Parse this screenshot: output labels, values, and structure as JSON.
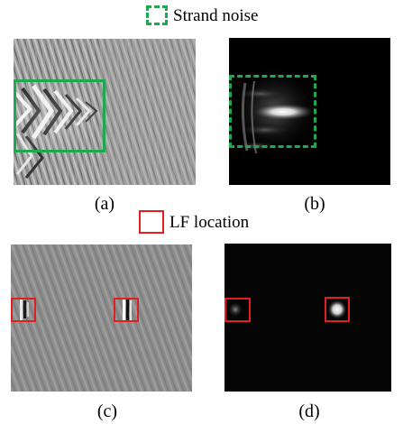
{
  "legend": {
    "strand_noise": "Strand noise",
    "lf_location": "LF location"
  },
  "panels": [
    {
      "id": "a",
      "caption": "(a)",
      "style": "grayscale-seismic"
    },
    {
      "id": "b",
      "caption": "(b)",
      "style": "dark-energy"
    },
    {
      "id": "c",
      "caption": "(c)",
      "style": "grayscale-seismic"
    },
    {
      "id": "d",
      "caption": "(d)",
      "style": "dark-energy"
    }
  ],
  "colors": {
    "strand_noise_box": "#1fa84f",
    "lf_location_box": "#e02020"
  }
}
